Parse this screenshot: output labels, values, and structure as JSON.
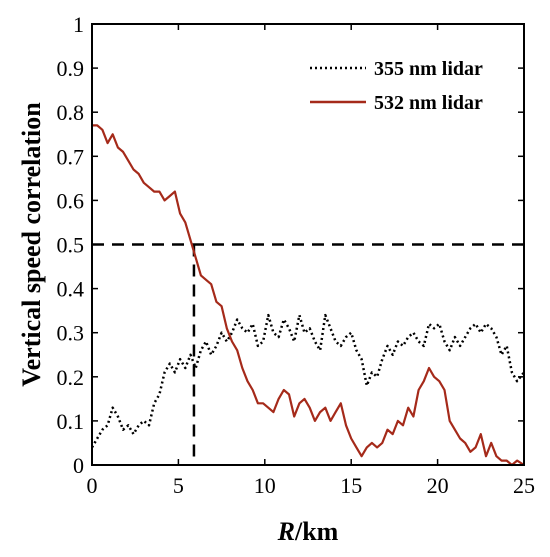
{
  "chart_data": {
    "type": "line",
    "title": "",
    "xlabel_italic": "R",
    "xlabel_rest": "/km",
    "ylabel": "Vertical speed correlation",
    "xlim": [
      0,
      25
    ],
    "ylim": [
      0,
      1
    ],
    "xticks": [
      0,
      5,
      10,
      15,
      20,
      25
    ],
    "yticks": [
      0,
      0.1,
      0.2,
      0.3,
      0.4,
      0.5,
      0.6,
      0.7,
      0.8,
      0.9,
      1
    ],
    "ytick_labels": [
      "0",
      "0.1",
      "0.2",
      "0.3",
      "0.4",
      "0.5",
      "0.6",
      "0.7",
      "0.8",
      "0.9",
      "1"
    ],
    "xtick_labels": [
      "0",
      "5",
      "10",
      "15",
      "20",
      "25"
    ],
    "grid": false,
    "legend_position": "top-right",
    "series": [
      {
        "name": "355 nm lidar",
        "color": "#000000",
        "style": "dotted",
        "x": [
          0,
          0.3,
          0.6,
          0.9,
          1.2,
          1.5,
          1.8,
          2.1,
          2.4,
          2.7,
          3.0,
          3.3,
          3.6,
          3.9,
          4.2,
          4.5,
          4.8,
          5.1,
          5.4,
          5.7,
          6.0,
          6.3,
          6.6,
          6.9,
          7.2,
          7.5,
          7.8,
          8.1,
          8.4,
          8.7,
          9.0,
          9.3,
          9.6,
          9.9,
          10.2,
          10.5,
          10.8,
          11.1,
          11.4,
          11.7,
          12.0,
          12.3,
          12.6,
          12.9,
          13.2,
          13.5,
          13.8,
          14.1,
          14.4,
          14.7,
          15.0,
          15.3,
          15.6,
          15.9,
          16.2,
          16.5,
          16.8,
          17.1,
          17.4,
          17.7,
          18.0,
          18.3,
          18.6,
          18.9,
          19.2,
          19.5,
          19.8,
          20.1,
          20.4,
          20.7,
          21.0,
          21.3,
          21.6,
          21.9,
          22.2,
          22.5,
          22.8,
          23.1,
          23.4,
          23.7,
          24.0,
          24.3,
          24.6,
          25.0
        ],
        "y": [
          0.04,
          0.06,
          0.08,
          0.09,
          0.13,
          0.11,
          0.08,
          0.09,
          0.07,
          0.09,
          0.1,
          0.09,
          0.14,
          0.16,
          0.21,
          0.23,
          0.21,
          0.24,
          0.22,
          0.25,
          0.22,
          0.26,
          0.28,
          0.25,
          0.27,
          0.3,
          0.28,
          0.3,
          0.33,
          0.31,
          0.3,
          0.32,
          0.27,
          0.28,
          0.34,
          0.3,
          0.29,
          0.33,
          0.31,
          0.28,
          0.34,
          0.3,
          0.31,
          0.28,
          0.26,
          0.34,
          0.31,
          0.28,
          0.27,
          0.29,
          0.3,
          0.26,
          0.24,
          0.18,
          0.21,
          0.2,
          0.24,
          0.27,
          0.25,
          0.28,
          0.27,
          0.29,
          0.3,
          0.28,
          0.27,
          0.32,
          0.31,
          0.32,
          0.28,
          0.26,
          0.29,
          0.27,
          0.29,
          0.31,
          0.32,
          0.3,
          0.32,
          0.31,
          0.29,
          0.25,
          0.27,
          0.21,
          0.19,
          0.21
        ]
      },
      {
        "name": "532 nm lidar",
        "color": "#a52a1a",
        "style": "solid",
        "x": [
          0,
          0.3,
          0.6,
          0.9,
          1.2,
          1.5,
          1.8,
          2.1,
          2.4,
          2.7,
          3.0,
          3.3,
          3.6,
          3.9,
          4.2,
          4.5,
          4.8,
          5.1,
          5.4,
          5.7,
          6.0,
          6.3,
          6.6,
          6.9,
          7.2,
          7.5,
          7.8,
          8.1,
          8.4,
          8.7,
          9.0,
          9.3,
          9.6,
          9.9,
          10.2,
          10.5,
          10.8,
          11.1,
          11.4,
          11.7,
          12.0,
          12.3,
          12.6,
          12.9,
          13.2,
          13.5,
          13.8,
          14.1,
          14.4,
          14.7,
          15.0,
          15.3,
          15.6,
          15.9,
          16.2,
          16.5,
          16.8,
          17.1,
          17.4,
          17.7,
          18.0,
          18.3,
          18.6,
          18.9,
          19.2,
          19.5,
          19.8,
          20.1,
          20.4,
          20.7,
          21.0,
          21.3,
          21.6,
          21.9,
          22.2,
          22.5,
          22.8,
          23.1,
          23.4,
          23.7,
          24.0,
          24.3,
          24.6,
          25.0
        ],
        "y": [
          0.77,
          0.77,
          0.76,
          0.73,
          0.75,
          0.72,
          0.71,
          0.69,
          0.67,
          0.66,
          0.64,
          0.63,
          0.62,
          0.62,
          0.6,
          0.61,
          0.62,
          0.57,
          0.55,
          0.51,
          0.47,
          0.43,
          0.42,
          0.41,
          0.37,
          0.36,
          0.31,
          0.28,
          0.26,
          0.22,
          0.19,
          0.17,
          0.14,
          0.14,
          0.13,
          0.12,
          0.15,
          0.17,
          0.16,
          0.11,
          0.14,
          0.15,
          0.13,
          0.1,
          0.12,
          0.13,
          0.1,
          0.12,
          0.14,
          0.09,
          0.06,
          0.04,
          0.02,
          0.04,
          0.05,
          0.04,
          0.05,
          0.08,
          0.07,
          0.1,
          0.09,
          0.13,
          0.11,
          0.17,
          0.19,
          0.22,
          0.2,
          0.19,
          0.17,
          0.1,
          0.08,
          0.06,
          0.05,
          0.03,
          0.04,
          0.07,
          0.02,
          0.05,
          0.02,
          0.01,
          0.01,
          0.0,
          0.01,
          0.0
        ]
      }
    ],
    "reference_lines": {
      "horizontal_y": 0.5,
      "vertical_x": 5.9,
      "color": "#000000",
      "style": "dashed"
    }
  }
}
